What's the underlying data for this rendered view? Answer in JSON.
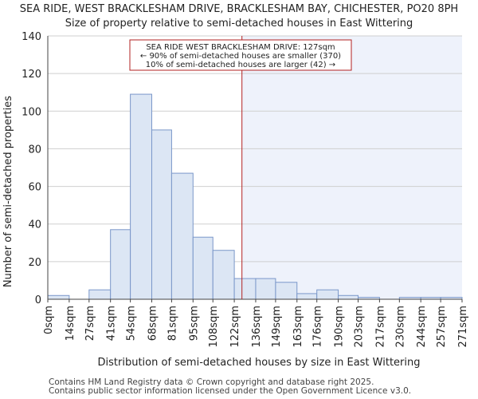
{
  "chart_data": {
    "type": "bar",
    "title": "SEA RIDE, WEST BRACKLESHAM DRIVE, BRACKLESHAM BAY, CHICHESTER, PO20 8PH",
    "subtitle": "Size of property relative to semi-detached houses in East Wittering",
    "xlabel": "Distribution of semi-detached houses by size in East Wittering",
    "ylabel": "Number of semi-detached properties",
    "ylim": [
      0,
      140
    ],
    "yticks": [
      0,
      20,
      40,
      60,
      80,
      100,
      120,
      140
    ],
    "xlim": [
      0,
      271
    ],
    "bin_edges": [
      0,
      14,
      27,
      41,
      54,
      68,
      81,
      95,
      108,
      122,
      136,
      149,
      163,
      176,
      190,
      203,
      217,
      230,
      244,
      257,
      271
    ],
    "tick_labels": [
      "0sqm",
      "14sqm",
      "27sqm",
      "41sqm",
      "54sqm",
      "68sqm",
      "81sqm",
      "95sqm",
      "108sqm",
      "122sqm",
      "136sqm",
      "149sqm",
      "163sqm",
      "176sqm",
      "190sqm",
      "203sqm",
      "217sqm",
      "230sqm",
      "244sqm",
      "257sqm",
      "271sqm"
    ],
    "values": [
      2,
      0,
      5,
      37,
      109,
      90,
      67,
      33,
      26,
      11,
      11,
      9,
      3,
      5,
      2,
      1,
      0,
      1,
      1,
      1
    ],
    "highlight_value": 127,
    "highlight_from": 127,
    "grid": "horizontal",
    "bar_color": "#dce6f4",
    "bar_edge_color": "#7a97c9",
    "line_color": "#b22222",
    "shade_color": "#eef2fb",
    "annotation": {
      "line1": "SEA RIDE WEST BRACKLESHAM DRIVE: 127sqm",
      "line2": "← 90% of semi-detached houses are smaller (370)",
      "line3": "10% of semi-detached houses are larger (42) →"
    }
  },
  "footer": {
    "line1": "Contains HM Land Registry data © Crown copyright and database right 2025.",
    "line2": "Contains public sector information licensed under the Open Government Licence v3.0."
  }
}
